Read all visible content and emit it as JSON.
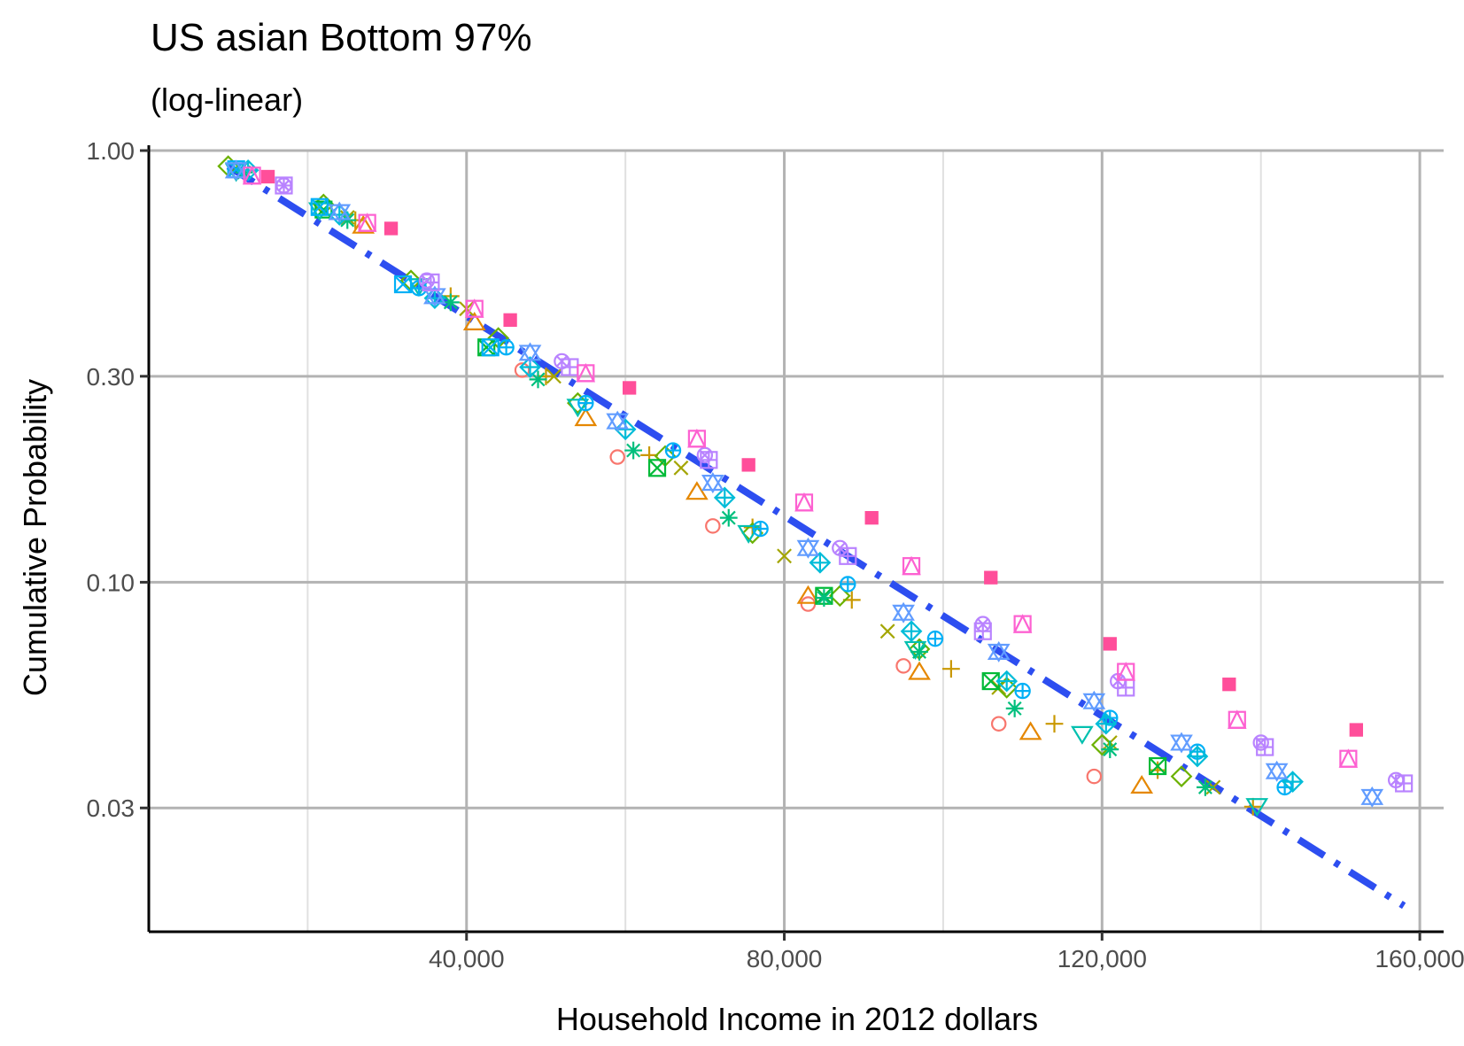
{
  "chart_data": {
    "type": "scatter",
    "title": "US asian Bottom 97%",
    "subtitle": "(log-linear)",
    "xlabel": "Household Income in 2012 dollars",
    "ylabel": "Cumulative Probability",
    "x_ticks": [
      40000,
      80000,
      120000,
      160000
    ],
    "x_tick_labels": [
      "40,000",
      "80,000",
      "120,000",
      "160,000"
    ],
    "y_ticks": [
      1.0,
      0.3,
      0.1,
      0.03
    ],
    "y_tick_labels": [
      "1.00",
      "0.30",
      "0.10",
      "0.03"
    ],
    "y_scale": "log",
    "xlim": [
      0,
      163000
    ],
    "ylim": [
      0.0155,
      1.0
    ],
    "grid": true,
    "legend": "none",
    "colors": {
      "trend": "#2d4ef0",
      "axis": "#000000",
      "grid_major": "#b3b3b3",
      "grid_minor": "#e0e0e0",
      "series_palette": [
        "#f8766d",
        "#e58700",
        "#c99800",
        "#a3a500",
        "#6bb100",
        "#00ba38",
        "#00bf7d",
        "#00c0af",
        "#00bcd8",
        "#00b0f6",
        "#619cff",
        "#b983ff",
        "#e76bf3",
        "#fd61d1",
        "#ff4e9a"
      ]
    },
    "trend_line": {
      "style": "dash-dot",
      "x": [
        10000,
        158000
      ],
      "y": [
        0.92,
        0.0178
      ]
    },
    "series": [
      {
        "marker": "circle",
        "color": "#f8766d",
        "x": [
          47000,
          59000,
          71000,
          83000,
          95000,
          107000,
          119000
        ],
        "y": [
          0.31,
          0.195,
          0.135,
          0.089,
          0.064,
          0.047,
          0.0355
        ]
      },
      {
        "marker": "triangle-up",
        "color": "#e58700",
        "x": [
          27000,
          41000,
          55000,
          69000,
          83000,
          97000,
          111000,
          125000
        ],
        "y": [
          0.67,
          0.4,
          0.24,
          0.162,
          0.093,
          0.062,
          0.045,
          0.0338
        ]
      },
      {
        "marker": "plus",
        "color": "#c99800",
        "x": [
          26000,
          38000,
          50000,
          63000,
          76000,
          88500,
          101000,
          114000,
          127000,
          139000
        ],
        "y": [
          0.69,
          0.46,
          0.3,
          0.197,
          0.134,
          0.091,
          0.063,
          0.047,
          0.0367,
          0.0302
        ]
      },
      {
        "marker": "cross",
        "color": "#a3a500",
        "x": [
          25000,
          40000,
          51000,
          67000,
          80000,
          93000,
          107000,
          121000,
          134000
        ],
        "y": [
          0.7,
          0.43,
          0.3,
          0.184,
          0.115,
          0.077,
          0.057,
          0.0425,
          0.0335
        ]
      },
      {
        "marker": "diamond",
        "color": "#6bb100",
        "x": [
          10000,
          22000,
          33000,
          44000,
          54000,
          65000,
          76000,
          87000,
          97000,
          108000,
          120000,
          130000
        ],
        "y": [
          0.92,
          0.75,
          0.5,
          0.368,
          0.26,
          0.196,
          0.13,
          0.093,
          0.07,
          0.057,
          0.042,
          0.0355
        ]
      },
      {
        "marker": "square-cross",
        "color": "#00ba38",
        "x": [
          22000,
          42500,
          64000,
          85000,
          106000,
          127000
        ],
        "y": [
          0.73,
          0.35,
          0.184,
          0.093,
          0.059,
          0.0375
        ]
      },
      {
        "marker": "triangle-down",
        "color": "#00c0af",
        "x": [
          11000,
          21500,
          34000,
          54000,
          75500,
          96500,
          117500,
          139500
        ],
        "y": [
          0.895,
          0.727,
          0.485,
          0.255,
          0.13,
          0.07,
          0.0445,
          0.0303
        ]
      },
      {
        "marker": "asterisk",
        "color": "#00bf7d",
        "x": [
          12000,
          25000,
          38000,
          49000,
          61000,
          73000,
          85000,
          97000,
          109000,
          121000,
          133000
        ],
        "y": [
          0.89,
          0.69,
          0.445,
          0.295,
          0.202,
          0.141,
          0.092,
          0.069,
          0.051,
          0.041,
          0.0335
        ]
      },
      {
        "marker": "square-cross-sq",
        "color": "#00b0f6",
        "x": [
          11000,
          21500,
          32000,
          43000
        ],
        "y": [
          0.905,
          0.74,
          0.49,
          0.35
        ]
      },
      {
        "marker": "circle-plus",
        "color": "#00b0f6",
        "x": [
          34000,
          45000,
          55000,
          66000,
          77000,
          88000,
          99000,
          110000,
          121000,
          132000,
          143000
        ],
        "y": [
          0.48,
          0.35,
          0.26,
          0.202,
          0.133,
          0.099,
          0.074,
          0.056,
          0.0485,
          0.0405,
          0.0335
        ]
      },
      {
        "marker": "diamond-plus",
        "color": "#00bcd8",
        "x": [
          12500,
          24000,
          36000,
          48000,
          60000,
          72500,
          84500,
          96000,
          108000,
          120500,
          132000,
          144000
        ],
        "y": [
          0.9,
          0.71,
          0.455,
          0.315,
          0.226,
          0.157,
          0.111,
          0.077,
          0.059,
          0.047,
          0.0395,
          0.0345
        ]
      },
      {
        "marker": "star-of-david",
        "color": "#619cff",
        "x": [
          11000,
          24000,
          36000,
          48000,
          59000,
          71000,
          83000,
          95000,
          107000,
          119000,
          130000,
          142000,
          154000
        ],
        "y": [
          0.9,
          0.72,
          0.46,
          0.34,
          0.236,
          0.17,
          0.12,
          0.085,
          0.069,
          0.053,
          0.0425,
          0.0365,
          0.0318
        ]
      },
      {
        "marker": "circle-cross",
        "color": "#b983ff",
        "x": [
          17000,
          35000,
          52000,
          70000,
          87000,
          105000,
          122000,
          140000,
          157000
        ],
        "y": [
          0.83,
          0.5,
          0.325,
          0.197,
          0.12,
          0.08,
          0.059,
          0.0425,
          0.0348
        ]
      },
      {
        "marker": "square-plus",
        "color": "#b983ff",
        "x": [
          17000,
          35500,
          53000,
          70500,
          88000,
          105000,
          123000,
          140500,
          158000
        ],
        "y": [
          0.83,
          0.495,
          0.315,
          0.192,
          0.115,
          0.077,
          0.057,
          0.0415,
          0.0342
        ]
      },
      {
        "marker": "square-triangle",
        "color": "#fd61d1",
        "x": [
          13000,
          27500,
          41000,
          55000,
          69000,
          82500,
          96000,
          110000,
          123000,
          137000,
          151000
        ],
        "y": [
          0.875,
          0.68,
          0.43,
          0.305,
          0.215,
          0.153,
          0.109,
          0.08,
          0.062,
          0.048,
          0.039
        ]
      },
      {
        "marker": "filled-square",
        "color": "#ff4e9a",
        "x": [
          15000,
          30500,
          45500,
          60500,
          75500,
          91000,
          106000,
          121000,
          136000,
          152000
        ],
        "y": [
          0.87,
          0.66,
          0.405,
          0.282,
          0.187,
          0.141,
          0.1025,
          0.072,
          0.058,
          0.0455
        ]
      }
    ]
  }
}
